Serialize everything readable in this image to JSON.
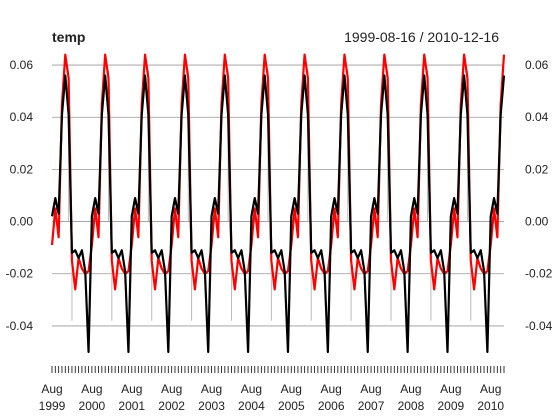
{
  "chart_data": {
    "type": "line",
    "title": "temp",
    "date_range": "1999-08-16 / 2010-12-16",
    "xlabel": "",
    "ylabel": "",
    "ylim": [
      -0.05,
      0.065
    ],
    "grid": true,
    "yticks": [
      "0.06",
      "0.04",
      "0.02",
      "0.00",
      "-0.02",
      "-0.04"
    ],
    "ytick_values": [
      0.06,
      0.04,
      0.02,
      0.0,
      -0.02,
      -0.04
    ],
    "xtick_labels": [
      {
        "month": "Aug",
        "year": "1999"
      },
      {
        "month": "Aug",
        "year": "2000"
      },
      {
        "month": "Aug",
        "year": "2001"
      },
      {
        "month": "Aug",
        "year": "2002"
      },
      {
        "month": "Aug",
        "year": "2003"
      },
      {
        "month": "Aug",
        "year": "2004"
      },
      {
        "month": "Aug",
        "year": "2005"
      },
      {
        "month": "Aug",
        "year": "2006"
      },
      {
        "month": "Aug",
        "year": "2007"
      },
      {
        "month": "Aug",
        "year": "2008"
      },
      {
        "month": "Aug",
        "year": "2009"
      },
      {
        "month": "Aug",
        "year": "2010"
      }
    ],
    "x_start": "1999-08-16",
    "x_end": "2010-12-16",
    "x_frequency": "monthly",
    "series": [
      {
        "color": "#000000",
        "annual_pattern": [
          0.002,
          0.009,
          0.003,
          0.041,
          0.056,
          0.041,
          -0.012,
          -0.011,
          -0.014,
          -0.011,
          -0.019,
          -0.05
        ]
      },
      {
        "color": "#ff0000",
        "annual_pattern": [
          -0.009,
          0.005,
          -0.006,
          0.045,
          0.064,
          0.055,
          -0.015,
          -0.026,
          -0.014,
          -0.018,
          -0.02,
          -0.019
        ]
      }
    ],
    "volume_bars": {
      "color": "#bbbbbb",
      "annual_pattern": [
        0.0,
        0.0,
        0.0,
        0.0,
        0.0,
        0.058,
        -0.038,
        0.0,
        0.0,
        0.0,
        0.0,
        0.0
      ]
    }
  }
}
